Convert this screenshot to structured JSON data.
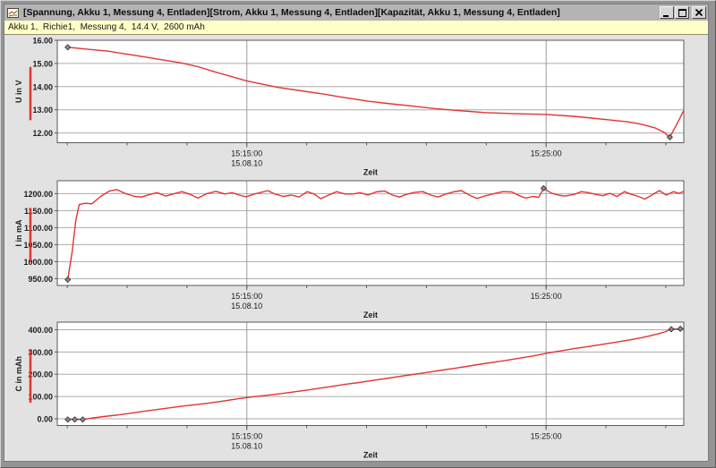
{
  "window": {
    "title": "[Spannung, Akku 1, Messung 4, Entladen][Strom, Akku 1, Messung 4, Entladen][Kapazität, Akku 1, Messung 4, Entladen]",
    "icon": "line-chart-icon",
    "controls": [
      "minimize",
      "maximize",
      "close"
    ]
  },
  "info_bar": {
    "text": "Akku 1,  Richie1,  Messung 4,  14.4 V,  2600 mAh"
  },
  "colors": {
    "series_red": "#e23434",
    "plot_bg": "#ffffff",
    "grid": "#ababab",
    "grid_major_x": "#9b9b9b",
    "frame": "#5a5a5a",
    "marker_fill": "#8a8a8a",
    "marker_stroke": "#2e2e2e",
    "titlebar_bg": "#b4b4b4",
    "infobar_bg": "#ffffc6",
    "panel_bg": "#e2e2e2"
  },
  "chart_data": [
    {
      "type": "line",
      "title": "Spannung, Akku 1, Messung 4, Entladen",
      "xlabel": "Zeit",
      "ylabel": "U in V",
      "x_unit": "seconds since 15:00:00 on 15.08.10",
      "x_range": [
        520,
        1776
      ],
      "x_major_ticks": [
        {
          "s": 900,
          "label": "15:15:00",
          "date": "15.08.10"
        },
        {
          "s": 1500,
          "label": "15:25:00"
        }
      ],
      "x_minor_ticks_start": 540,
      "x_minor_tick_step_s": 120,
      "y_range": [
        11.58,
        16.0
      ],
      "y_ticks": [
        {
          "value": 16,
          "label": "16.00"
        },
        {
          "value": 15,
          "label": "15.00"
        },
        {
          "value": 14,
          "label": "14.00"
        },
        {
          "value": 13,
          "label": "13.00"
        },
        {
          "value": 12,
          "label": "12.00"
        }
      ],
      "grid": true,
      "legend": "none",
      "series": [
        {
          "name": "Spannung",
          "color": "#e23434",
          "points": [
            [
              541,
              15.7
            ],
            [
              577,
              15.62
            ],
            [
              622,
              15.53
            ],
            [
              689,
              15.3
            ],
            [
              730,
              15.16
            ],
            [
              766,
              15.03
            ],
            [
              802,
              14.86
            ],
            [
              838,
              14.62
            ],
            [
              870,
              14.43
            ],
            [
              899,
              14.25
            ],
            [
              928,
              14.12
            ],
            [
              964,
              13.96
            ],
            [
              1009,
              13.82
            ],
            [
              1053,
              13.68
            ],
            [
              1098,
              13.52
            ],
            [
              1143,
              13.37
            ],
            [
              1188,
              13.26
            ],
            [
              1233,
              13.16
            ],
            [
              1278,
              13.05
            ],
            [
              1323,
              12.97
            ],
            [
              1377,
              12.88
            ],
            [
              1431,
              12.84
            ],
            [
              1501,
              12.8
            ],
            [
              1556,
              12.72
            ],
            [
              1592,
              12.64
            ],
            [
              1628,
              12.56
            ],
            [
              1664,
              12.48
            ],
            [
              1691,
              12.38
            ],
            [
              1718,
              12.22
            ],
            [
              1736,
              12.04
            ],
            [
              1748,
              11.82
            ],
            [
              1763,
              12.42
            ],
            [
              1775,
              12.93
            ]
          ],
          "markers": [
            [
              541,
              15.7
            ],
            [
              1748,
              11.82
            ]
          ]
        }
      ]
    },
    {
      "type": "line",
      "title": "Strom, Akku 1, Messung 4, Entladen",
      "xlabel": "Zeit",
      "ylabel": "I in mA",
      "x_unit": "seconds since 15:00:00 on 15.08.10",
      "x_range": [
        520,
        1776
      ],
      "x_major_ticks": [
        {
          "s": 900,
          "label": "15:15:00",
          "date": "15.08.10"
        },
        {
          "s": 1500,
          "label": "15:25:00"
        }
      ],
      "x_minor_ticks_start": 540,
      "x_minor_tick_step_s": 120,
      "y_range": [
        930,
        1238
      ],
      "y_ticks": [
        {
          "value": 1200,
          "label": "1200.00"
        },
        {
          "value": 1150,
          "label": "1150.00"
        },
        {
          "value": 1100,
          "label": "1100.00"
        },
        {
          "value": 1050,
          "label": "1050.00"
        },
        {
          "value": 1000,
          "label": "1000.00"
        },
        {
          "value": 950,
          "label": "950.00"
        }
      ],
      "grid": true,
      "legend": "none",
      "series": [
        {
          "name": "Strom",
          "color": "#e23434",
          "points": [
            [
              541,
              947
            ],
            [
              550,
              1030
            ],
            [
              557,
              1120
            ],
            [
              564,
              1168
            ],
            [
              577,
              1172
            ],
            [
              589,
              1170
            ],
            [
              607,
              1192
            ],
            [
              625,
              1208
            ],
            [
              639,
              1212
            ],
            [
              657,
              1200
            ],
            [
              675,
              1192
            ],
            [
              689,
              1190
            ],
            [
              704,
              1197
            ],
            [
              720,
              1203
            ],
            [
              738,
              1193
            ],
            [
              752,
              1199
            ],
            [
              770,
              1206
            ],
            [
              788,
              1197
            ],
            [
              802,
              1187
            ],
            [
              820,
              1200
            ],
            [
              838,
              1207
            ],
            [
              856,
              1199
            ],
            [
              870,
              1203
            ],
            [
              885,
              1196
            ],
            [
              899,
              1191
            ],
            [
              915,
              1199
            ],
            [
              929,
              1204
            ],
            [
              942,
              1209
            ],
            [
              956,
              1199
            ],
            [
              973,
              1192
            ],
            [
              989,
              1196
            ],
            [
              1005,
              1190
            ],
            [
              1021,
              1206
            ],
            [
              1035,
              1199
            ],
            [
              1048,
              1185
            ],
            [
              1064,
              1196
            ],
            [
              1080,
              1206
            ],
            [
              1097,
              1199
            ],
            [
              1113,
              1199
            ],
            [
              1127,
              1203
            ],
            [
              1143,
              1196
            ],
            [
              1159,
              1205
            ],
            [
              1176,
              1208
            ],
            [
              1192,
              1196
            ],
            [
              1206,
              1190
            ],
            [
              1220,
              1198
            ],
            [
              1237,
              1204
            ],
            [
              1253,
              1206
            ],
            [
              1269,
              1196
            ],
            [
              1283,
              1190
            ],
            [
              1299,
              1199
            ],
            [
              1316,
              1206
            ],
            [
              1330,
              1209
            ],
            [
              1346,
              1196
            ],
            [
              1361,
              1186
            ],
            [
              1377,
              1193
            ],
            [
              1395,
              1200
            ],
            [
              1413,
              1206
            ],
            [
              1431,
              1205
            ],
            [
              1445,
              1195
            ],
            [
              1459,
              1187
            ],
            [
              1474,
              1192
            ],
            [
              1485,
              1189
            ],
            [
              1495,
              1216
            ],
            [
              1510,
              1202
            ],
            [
              1524,
              1196
            ],
            [
              1538,
              1193
            ],
            [
              1556,
              1198
            ],
            [
              1571,
              1206
            ],
            [
              1585,
              1203
            ],
            [
              1599,
              1198
            ],
            [
              1614,
              1194
            ],
            [
              1628,
              1201
            ],
            [
              1642,
              1192
            ],
            [
              1657,
              1206
            ],
            [
              1671,
              1198
            ],
            [
              1685,
              1192
            ],
            [
              1698,
              1184
            ],
            [
              1712,
              1196
            ],
            [
              1727,
              1209
            ],
            [
              1741,
              1196
            ],
            [
              1755,
              1206
            ],
            [
              1766,
              1201
            ],
            [
              1775,
              1206
            ]
          ],
          "markers": [
            [
              541,
              947
            ],
            [
              1495,
              1216
            ]
          ]
        }
      ]
    },
    {
      "type": "line",
      "title": "Kapazität, Akku 1, Messung 4, Entladen",
      "xlabel": "Zeit",
      "ylabel": "C in mAh",
      "x_unit": "seconds since 15:00:00 on 15.08.10",
      "x_range": [
        520,
        1776
      ],
      "x_major_ticks": [
        {
          "s": 900,
          "label": "15:15:00",
          "date": "15.08.10"
        },
        {
          "s": 1500,
          "label": "15:25:00"
        }
      ],
      "x_minor_ticks_start": 540,
      "x_minor_tick_step_s": 120,
      "y_range": [
        -30,
        434
      ],
      "y_ticks": [
        {
          "value": 400,
          "label": "400.00"
        },
        {
          "value": 300,
          "label": "300.00"
        },
        {
          "value": 200,
          "label": "200.00"
        },
        {
          "value": 100,
          "label": "100.00"
        },
        {
          "value": 0,
          "label": "0.00"
        }
      ],
      "grid": true,
      "legend": "none",
      "series": [
        {
          "name": "Kapazität",
          "color": "#e23434",
          "points": [
            [
              541,
              -3
            ],
            [
              555,
              -3
            ],
            [
              571,
              -3
            ],
            [
              586,
              2
            ],
            [
              613,
              10
            ],
            [
              640,
              17
            ],
            [
              667,
              25
            ],
            [
              694,
              34
            ],
            [
              721,
              42
            ],
            [
              748,
              50
            ],
            [
              775,
              58
            ],
            [
              802,
              65
            ],
            [
              829,
              72
            ],
            [
              856,
              81
            ],
            [
              883,
              90
            ],
            [
              910,
              98
            ],
            [
              937,
              105
            ],
            [
              964,
              112
            ],
            [
              991,
              120
            ],
            [
              1018,
              128
            ],
            [
              1045,
              137
            ],
            [
              1072,
              146
            ],
            [
              1098,
              155
            ],
            [
              1125,
              163
            ],
            [
              1152,
              172
            ],
            [
              1179,
              181
            ],
            [
              1206,
              190
            ],
            [
              1233,
              199
            ],
            [
              1260,
              208
            ],
            [
              1287,
              217
            ],
            [
              1314,
              226
            ],
            [
              1341,
              235
            ],
            [
              1368,
              245
            ],
            [
              1395,
              254
            ],
            [
              1422,
              263
            ],
            [
              1449,
              273
            ],
            [
              1476,
              283
            ],
            [
              1503,
              295
            ],
            [
              1530,
              305
            ],
            [
              1556,
              315
            ],
            [
              1583,
              324
            ],
            [
              1610,
              333
            ],
            [
              1637,
              343
            ],
            [
              1664,
              353
            ],
            [
              1691,
              364
            ],
            [
              1709,
              373
            ],
            [
              1727,
              383
            ],
            [
              1740,
              392
            ],
            [
              1751,
              402
            ],
            [
              1769,
              404
            ],
            [
              1775,
              405
            ]
          ],
          "markers": [
            [
              541,
              -3
            ],
            [
              555,
              -3
            ],
            [
              571,
              -3
            ],
            [
              1751,
              402
            ],
            [
              1769,
              404
            ]
          ]
        }
      ]
    }
  ]
}
